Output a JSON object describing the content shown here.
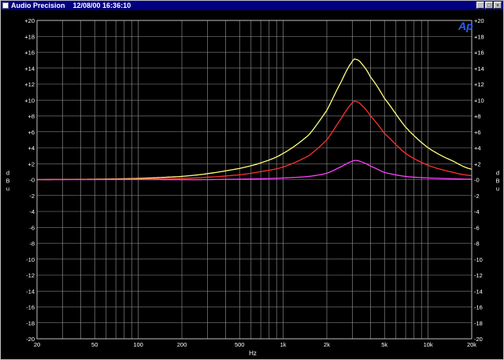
{
  "window": {
    "title": "Audio Precision",
    "timestamp": "12/08/00 16:36:10",
    "buttons": [
      "_",
      "□",
      "×"
    ]
  },
  "logo": "Ap",
  "chart_data": {
    "type": "line",
    "title": "",
    "xlabel": "Hz",
    "ylabel": "dBu",
    "ylabel_letters": [
      "d",
      "B",
      "u"
    ],
    "xscale": "log",
    "xlim": [
      20,
      20000
    ],
    "ylim": [
      -20,
      20
    ],
    "grid": true,
    "x_ticks": [
      {
        "v": 20,
        "label": "20"
      },
      {
        "v": 50,
        "label": "50"
      },
      {
        "v": 100,
        "label": "100"
      },
      {
        "v": 200,
        "label": "200"
      },
      {
        "v": 500,
        "label": "500"
      },
      {
        "v": 1000,
        "label": "1k"
      },
      {
        "v": 2000,
        "label": "2k"
      },
      {
        "v": 5000,
        "label": "5k"
      },
      {
        "v": 10000,
        "label": "10k"
      },
      {
        "v": 20000,
        "label": "20k"
      }
    ],
    "y_ticks": [
      {
        "v": 20,
        "label": "+20"
      },
      {
        "v": 18,
        "label": "+18"
      },
      {
        "v": 16,
        "label": "+16"
      },
      {
        "v": 14,
        "label": "+14"
      },
      {
        "v": 12,
        "label": "+12"
      },
      {
        "v": 10,
        "label": "+10"
      },
      {
        "v": 8,
        "label": "+8"
      },
      {
        "v": 6,
        "label": "+6"
      },
      {
        "v": 4,
        "label": "+4"
      },
      {
        "v": 2,
        "label": "+2"
      },
      {
        "v": 0,
        "label": "-0"
      },
      {
        "v": -2,
        "label": "-2"
      },
      {
        "v": -4,
        "label": "-4"
      },
      {
        "v": -6,
        "label": "-6"
      },
      {
        "v": -8,
        "label": "-8"
      },
      {
        "v": -10,
        "label": "-10"
      },
      {
        "v": -12,
        "label": "-12"
      },
      {
        "v": -14,
        "label": "-14"
      },
      {
        "v": -16,
        "label": "-16"
      },
      {
        "v": -18,
        "label": "-18"
      },
      {
        "v": -20,
        "label": "-20"
      }
    ],
    "series": [
      {
        "color": "#ffff80",
        "x": [
          20,
          50,
          100,
          200,
          300,
          500,
          700,
          1000,
          1500,
          2000,
          2500,
          3000,
          3200,
          3500,
          4000,
          5000,
          7000,
          10000,
          15000,
          20000
        ],
        "y": [
          0,
          0.05,
          0.15,
          0.4,
          0.75,
          1.4,
          2.1,
          3.3,
          5.6,
          8.7,
          12.2,
          14.8,
          15.1,
          14.5,
          12.9,
          10.2,
          6.6,
          4.0,
          2.3,
          1.3
        ]
      },
      {
        "color": "#ff3030",
        "x": [
          20,
          50,
          100,
          200,
          300,
          500,
          700,
          1000,
          1500,
          2000,
          2500,
          3000,
          3200,
          3500,
          4000,
          5000,
          7000,
          10000,
          15000,
          20000
        ],
        "y": [
          0,
          0.02,
          0.05,
          0.15,
          0.3,
          0.6,
          1.0,
          1.6,
          3.0,
          5.0,
          7.6,
          9.6,
          9.8,
          9.3,
          8.0,
          5.8,
          3.3,
          1.8,
          0.9,
          0.5
        ]
      },
      {
        "color": "#ff40ff",
        "x": [
          20,
          100,
          300,
          700,
          1000,
          1500,
          2000,
          2500,
          3000,
          3200,
          3500,
          4000,
          5000,
          7000,
          10000,
          20000
        ],
        "y": [
          0,
          0,
          0,
          0.1,
          0.2,
          0.4,
          0.8,
          1.6,
          2.3,
          2.4,
          2.2,
          1.7,
          0.9,
          0.4,
          0.2,
          0.05
        ]
      }
    ]
  }
}
